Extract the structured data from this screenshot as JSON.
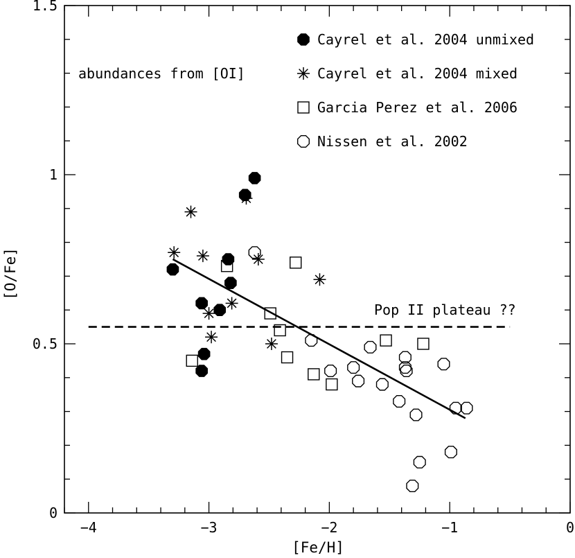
{
  "chart_data": {
    "type": "scatter",
    "xlabel": "[Fe/H]",
    "ylabel": "[O/Fe]",
    "xlim": [
      -4.2,
      0
    ],
    "ylim": [
      0,
      1.5
    ],
    "x_ticks": [
      {
        "value": -4,
        "label": "−4"
      },
      {
        "value": -3,
        "label": "−3"
      },
      {
        "value": -2,
        "label": "−2"
      },
      {
        "value": -1,
        "label": "−1"
      },
      {
        "value": 0,
        "label": "0"
      }
    ],
    "y_ticks": [
      {
        "value": 0,
        "label": "0"
      },
      {
        "value": 0.5,
        "label": "0.5"
      },
      {
        "value": 1,
        "label": "1"
      },
      {
        "value": 1.5,
        "label": "1.5"
      }
    ],
    "x_minor_step": 0.2,
    "y_minor_step": 0.1,
    "annotations": {
      "abundance_label": "abundances from [OI]",
      "plateau_label": "Pop II plateau ??"
    },
    "plateau_line": {
      "x": [
        -4.0,
        -0.5
      ],
      "y": [
        0.55,
        0.55
      ],
      "style": "dashed"
    },
    "fit_line": {
      "x": [
        -3.3,
        -0.87
      ],
      "y": [
        0.75,
        0.28
      ],
      "style": "solid"
    },
    "series": [
      {
        "name": "Cayrel et al. 2004 unmixed",
        "marker": "filled-octagon",
        "points": [
          [
            -3.3,
            0.72
          ],
          [
            -3.06,
            0.62
          ],
          [
            -3.06,
            0.42
          ],
          [
            -3.04,
            0.47
          ],
          [
            -2.91,
            0.6
          ],
          [
            -2.84,
            0.75
          ],
          [
            -2.82,
            0.68
          ],
          [
            -2.7,
            0.94
          ],
          [
            -2.62,
            0.99
          ]
        ]
      },
      {
        "name": "Cayrel et al. 2004 mixed",
        "marker": "asterisk",
        "points": [
          [
            -3.29,
            0.77
          ],
          [
            -3.15,
            0.89
          ],
          [
            -3.05,
            0.76
          ],
          [
            -3.0,
            0.59
          ],
          [
            -2.98,
            0.52
          ],
          [
            -2.81,
            0.62
          ],
          [
            -2.69,
            0.93
          ],
          [
            -2.59,
            0.75
          ],
          [
            -2.48,
            0.5
          ],
          [
            -2.08,
            0.69
          ]
        ]
      },
      {
        "name": "Garcia Perez et al. 2006",
        "marker": "open-square",
        "points": [
          [
            -3.14,
            0.45
          ],
          [
            -2.85,
            0.73
          ],
          [
            -2.49,
            0.59
          ],
          [
            -2.41,
            0.54
          ],
          [
            -2.35,
            0.46
          ],
          [
            -2.28,
            0.74
          ],
          [
            -2.13,
            0.41
          ],
          [
            -1.98,
            0.38
          ],
          [
            -1.53,
            0.51
          ],
          [
            -1.22,
            0.5
          ]
        ]
      },
      {
        "name": "Nissen et al. 2002",
        "marker": "open-octagon",
        "points": [
          [
            -2.62,
            0.77
          ],
          [
            -2.15,
            0.51
          ],
          [
            -1.99,
            0.42
          ],
          [
            -1.8,
            0.43
          ],
          [
            -1.76,
            0.39
          ],
          [
            -1.66,
            0.49
          ],
          [
            -1.56,
            0.38
          ],
          [
            -1.42,
            0.33
          ],
          [
            -1.37,
            0.46
          ],
          [
            -1.37,
            0.43
          ],
          [
            -1.36,
            0.42
          ],
          [
            -1.31,
            0.08
          ],
          [
            -1.28,
            0.29
          ],
          [
            -1.25,
            0.15
          ],
          [
            -1.05,
            0.44
          ],
          [
            -0.99,
            0.18
          ],
          [
            -0.95,
            0.31
          ],
          [
            -0.86,
            0.31
          ]
        ]
      }
    ]
  }
}
